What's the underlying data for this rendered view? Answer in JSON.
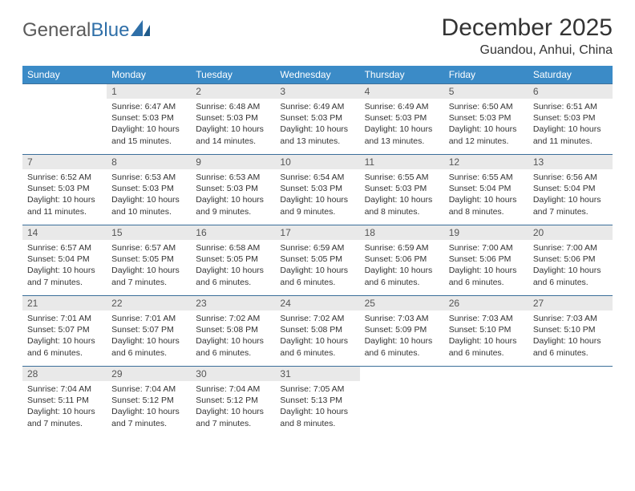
{
  "brand": {
    "part1": "General",
    "part2": "Blue"
  },
  "title": "December 2025",
  "location": "Guandou, Anhui, China",
  "colors": {
    "header_bg": "#3b8bc7",
    "header_text": "#ffffff",
    "daynum_bg": "#e9e9e9",
    "row_border": "#3b6f9a",
    "body_text": "#333333",
    "brand_gray": "#5a5a5a",
    "brand_blue": "#2f6fa8"
  },
  "weekdays": [
    "Sunday",
    "Monday",
    "Tuesday",
    "Wednesday",
    "Thursday",
    "Friday",
    "Saturday"
  ],
  "weeks": [
    [
      null,
      {
        "n": "1",
        "sunrise": "Sunrise: 6:47 AM",
        "sunset": "Sunset: 5:03 PM",
        "daylight": "Daylight: 10 hours and 15 minutes."
      },
      {
        "n": "2",
        "sunrise": "Sunrise: 6:48 AM",
        "sunset": "Sunset: 5:03 PM",
        "daylight": "Daylight: 10 hours and 14 minutes."
      },
      {
        "n": "3",
        "sunrise": "Sunrise: 6:49 AM",
        "sunset": "Sunset: 5:03 PM",
        "daylight": "Daylight: 10 hours and 13 minutes."
      },
      {
        "n": "4",
        "sunrise": "Sunrise: 6:49 AM",
        "sunset": "Sunset: 5:03 PM",
        "daylight": "Daylight: 10 hours and 13 minutes."
      },
      {
        "n": "5",
        "sunrise": "Sunrise: 6:50 AM",
        "sunset": "Sunset: 5:03 PM",
        "daylight": "Daylight: 10 hours and 12 minutes."
      },
      {
        "n": "6",
        "sunrise": "Sunrise: 6:51 AM",
        "sunset": "Sunset: 5:03 PM",
        "daylight": "Daylight: 10 hours and 11 minutes."
      }
    ],
    [
      {
        "n": "7",
        "sunrise": "Sunrise: 6:52 AM",
        "sunset": "Sunset: 5:03 PM",
        "daylight": "Daylight: 10 hours and 11 minutes."
      },
      {
        "n": "8",
        "sunrise": "Sunrise: 6:53 AM",
        "sunset": "Sunset: 5:03 PM",
        "daylight": "Daylight: 10 hours and 10 minutes."
      },
      {
        "n": "9",
        "sunrise": "Sunrise: 6:53 AM",
        "sunset": "Sunset: 5:03 PM",
        "daylight": "Daylight: 10 hours and 9 minutes."
      },
      {
        "n": "10",
        "sunrise": "Sunrise: 6:54 AM",
        "sunset": "Sunset: 5:03 PM",
        "daylight": "Daylight: 10 hours and 9 minutes."
      },
      {
        "n": "11",
        "sunrise": "Sunrise: 6:55 AM",
        "sunset": "Sunset: 5:03 PM",
        "daylight": "Daylight: 10 hours and 8 minutes."
      },
      {
        "n": "12",
        "sunrise": "Sunrise: 6:55 AM",
        "sunset": "Sunset: 5:04 PM",
        "daylight": "Daylight: 10 hours and 8 minutes."
      },
      {
        "n": "13",
        "sunrise": "Sunrise: 6:56 AM",
        "sunset": "Sunset: 5:04 PM",
        "daylight": "Daylight: 10 hours and 7 minutes."
      }
    ],
    [
      {
        "n": "14",
        "sunrise": "Sunrise: 6:57 AM",
        "sunset": "Sunset: 5:04 PM",
        "daylight": "Daylight: 10 hours and 7 minutes."
      },
      {
        "n": "15",
        "sunrise": "Sunrise: 6:57 AM",
        "sunset": "Sunset: 5:05 PM",
        "daylight": "Daylight: 10 hours and 7 minutes."
      },
      {
        "n": "16",
        "sunrise": "Sunrise: 6:58 AM",
        "sunset": "Sunset: 5:05 PM",
        "daylight": "Daylight: 10 hours and 6 minutes."
      },
      {
        "n": "17",
        "sunrise": "Sunrise: 6:59 AM",
        "sunset": "Sunset: 5:05 PM",
        "daylight": "Daylight: 10 hours and 6 minutes."
      },
      {
        "n": "18",
        "sunrise": "Sunrise: 6:59 AM",
        "sunset": "Sunset: 5:06 PM",
        "daylight": "Daylight: 10 hours and 6 minutes."
      },
      {
        "n": "19",
        "sunrise": "Sunrise: 7:00 AM",
        "sunset": "Sunset: 5:06 PM",
        "daylight": "Daylight: 10 hours and 6 minutes."
      },
      {
        "n": "20",
        "sunrise": "Sunrise: 7:00 AM",
        "sunset": "Sunset: 5:06 PM",
        "daylight": "Daylight: 10 hours and 6 minutes."
      }
    ],
    [
      {
        "n": "21",
        "sunrise": "Sunrise: 7:01 AM",
        "sunset": "Sunset: 5:07 PM",
        "daylight": "Daylight: 10 hours and 6 minutes."
      },
      {
        "n": "22",
        "sunrise": "Sunrise: 7:01 AM",
        "sunset": "Sunset: 5:07 PM",
        "daylight": "Daylight: 10 hours and 6 minutes."
      },
      {
        "n": "23",
        "sunrise": "Sunrise: 7:02 AM",
        "sunset": "Sunset: 5:08 PM",
        "daylight": "Daylight: 10 hours and 6 minutes."
      },
      {
        "n": "24",
        "sunrise": "Sunrise: 7:02 AM",
        "sunset": "Sunset: 5:08 PM",
        "daylight": "Daylight: 10 hours and 6 minutes."
      },
      {
        "n": "25",
        "sunrise": "Sunrise: 7:03 AM",
        "sunset": "Sunset: 5:09 PM",
        "daylight": "Daylight: 10 hours and 6 minutes."
      },
      {
        "n": "26",
        "sunrise": "Sunrise: 7:03 AM",
        "sunset": "Sunset: 5:10 PM",
        "daylight": "Daylight: 10 hours and 6 minutes."
      },
      {
        "n": "27",
        "sunrise": "Sunrise: 7:03 AM",
        "sunset": "Sunset: 5:10 PM",
        "daylight": "Daylight: 10 hours and 6 minutes."
      }
    ],
    [
      {
        "n": "28",
        "sunrise": "Sunrise: 7:04 AM",
        "sunset": "Sunset: 5:11 PM",
        "daylight": "Daylight: 10 hours and 7 minutes."
      },
      {
        "n": "29",
        "sunrise": "Sunrise: 7:04 AM",
        "sunset": "Sunset: 5:12 PM",
        "daylight": "Daylight: 10 hours and 7 minutes."
      },
      {
        "n": "30",
        "sunrise": "Sunrise: 7:04 AM",
        "sunset": "Sunset: 5:12 PM",
        "daylight": "Daylight: 10 hours and 7 minutes."
      },
      {
        "n": "31",
        "sunrise": "Sunrise: 7:05 AM",
        "sunset": "Sunset: 5:13 PM",
        "daylight": "Daylight: 10 hours and 8 minutes."
      },
      null,
      null,
      null
    ]
  ]
}
